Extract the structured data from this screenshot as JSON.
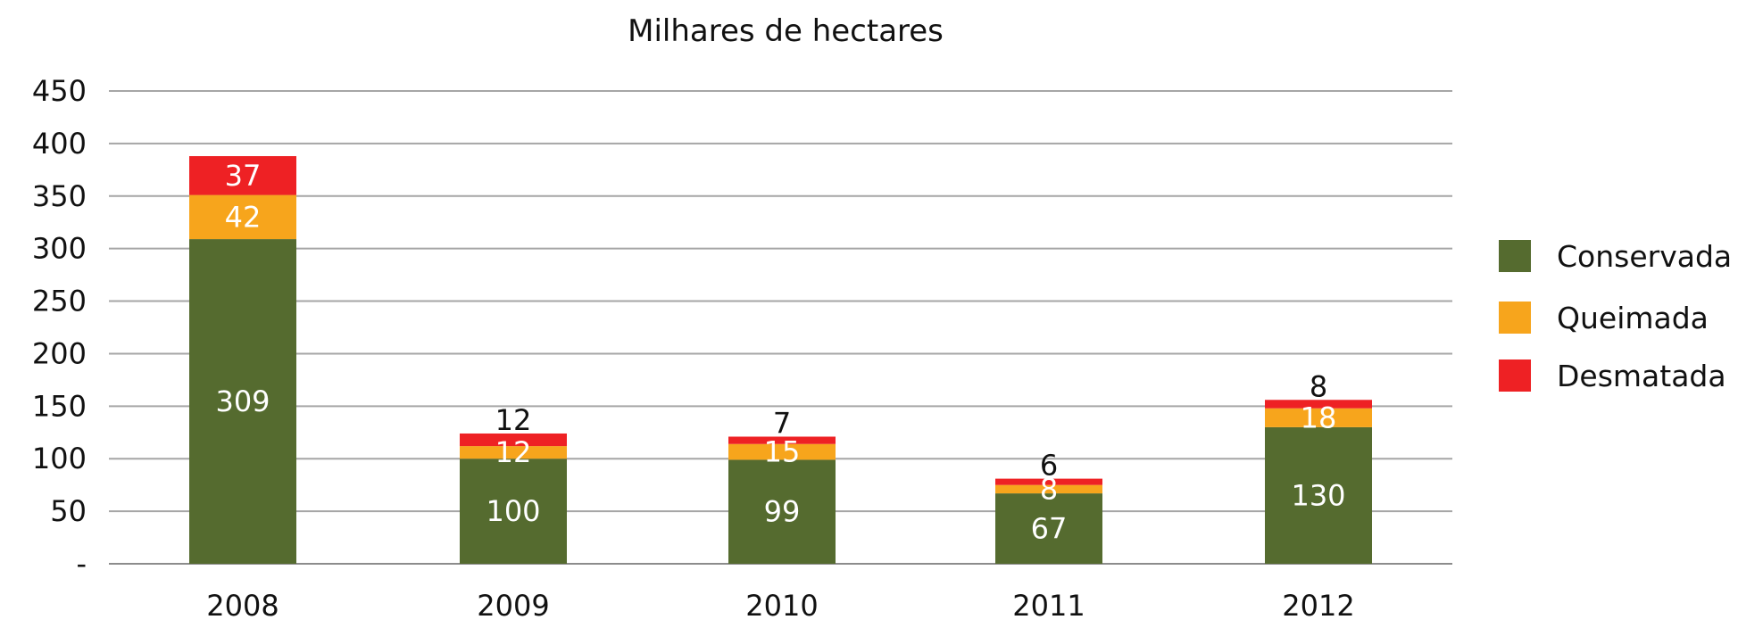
{
  "chart_data": {
    "type": "bar",
    "stacked": true,
    "title": "Milhares de hectares",
    "xlabel": "",
    "ylabel": "",
    "ylim": [
      0,
      450
    ],
    "yticks": [
      0,
      50,
      100,
      150,
      200,
      250,
      300,
      350,
      400,
      450
    ],
    "ytick_labels": [
      "-",
      "50",
      "100",
      "150",
      "200",
      "250",
      "300",
      "350",
      "400",
      "450"
    ],
    "grid": true,
    "legend_position": "right",
    "categories": [
      "2008",
      "2009",
      "2010",
      "2011",
      "2012"
    ],
    "series": [
      {
        "name": "Conservada",
        "color": "#556b2f",
        "values": [
          309,
          100,
          99,
          67,
          130
        ],
        "labels": [
          "309",
          "100",
          "99",
          "67",
          "130"
        ]
      },
      {
        "name": "Queimada",
        "color": "#f7a51c",
        "values": [
          42,
          12,
          15,
          8,
          18
        ],
        "labels": [
          "42",
          "12",
          "15",
          "8",
          "18"
        ]
      },
      {
        "name": "Desmatada",
        "color": "#ee2124",
        "values": [
          37,
          12,
          7,
          6,
          8
        ],
        "labels": [
          "37",
          "12",
          "7",
          "6",
          "8"
        ]
      }
    ]
  }
}
